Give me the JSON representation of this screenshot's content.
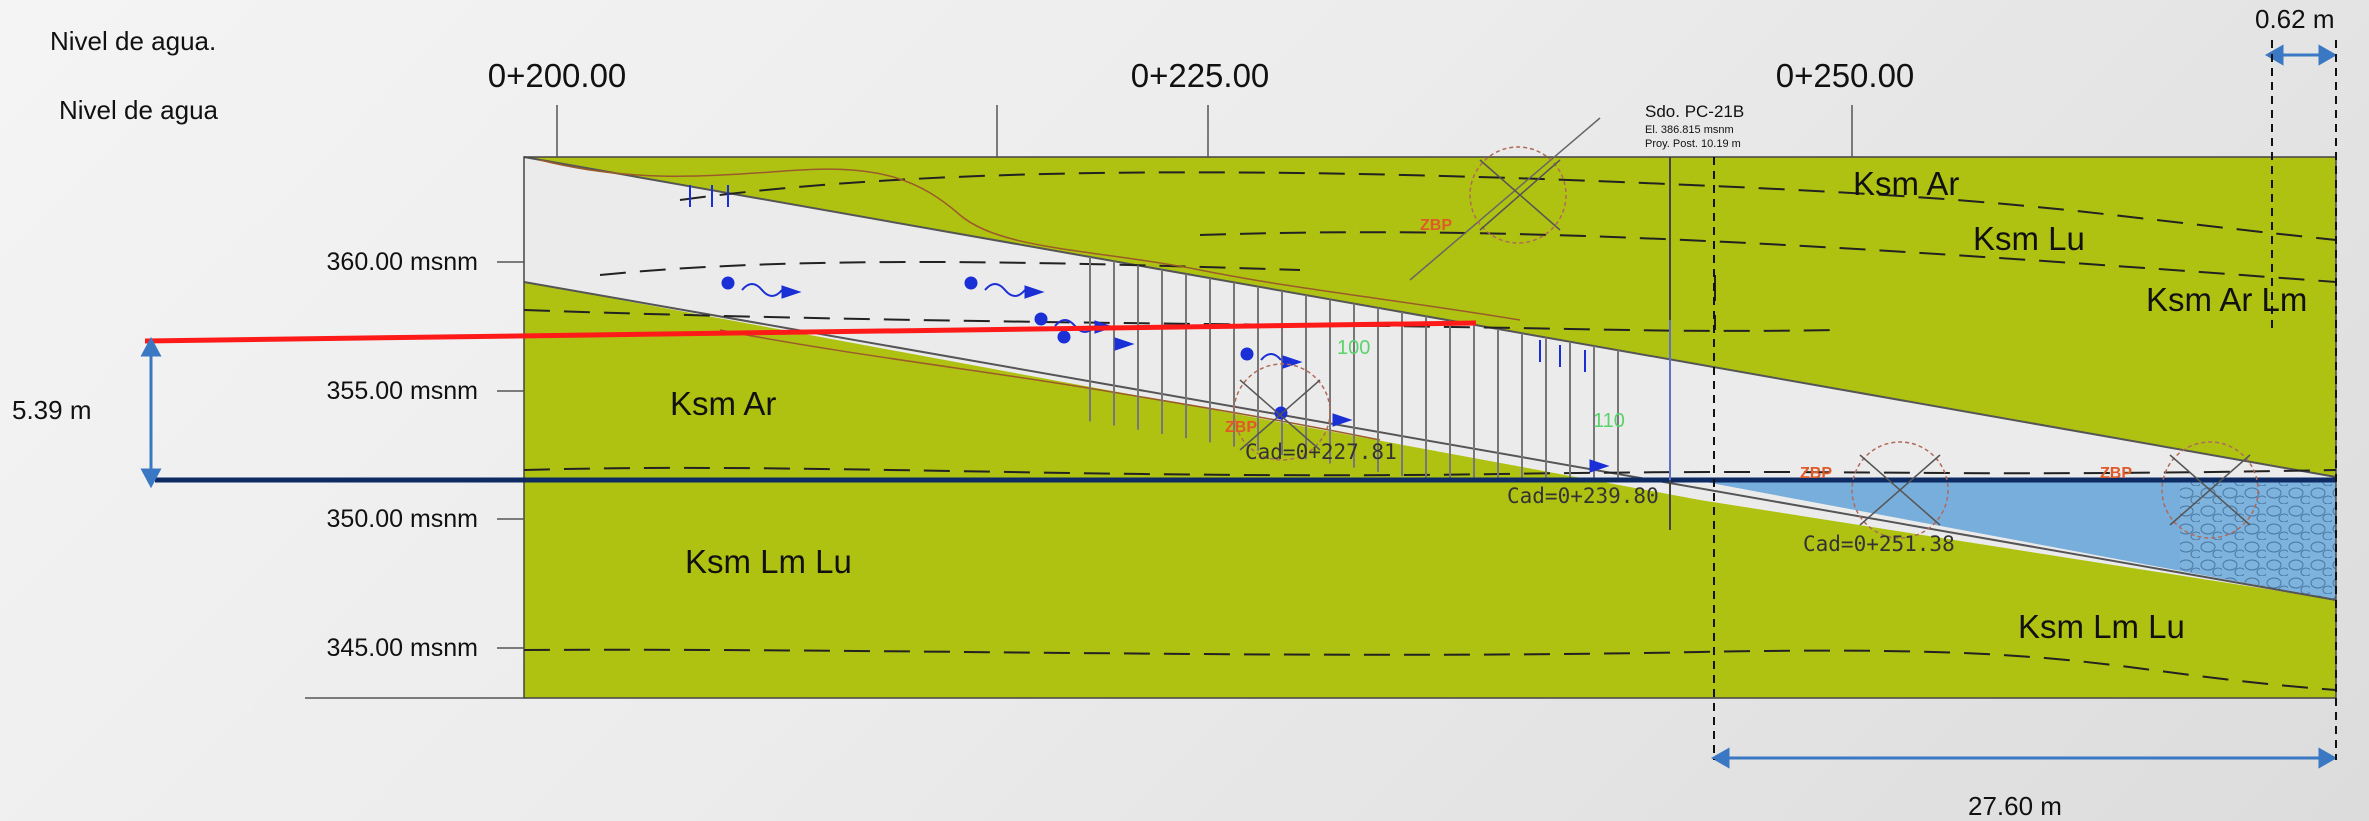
{
  "legend": {
    "item1": "Nivel de agua.",
    "item2": "Nivel de agua"
  },
  "stations": [
    "0+200.00",
    "0+225.00",
    "0+250.00"
  ],
  "elevations": [
    "360.00 msnm",
    "355.00 msnm",
    "350.00 msnm",
    "345.00 msnm"
  ],
  "strata": {
    "ksm_ar_left": "Ksm Ar",
    "ksm_lmlu_left": "Ksm Lm Lu",
    "ksm_ar_top": "Ksm Ar",
    "ksm_lu": "Ksm Lu",
    "ksm_arlm": "Ksm Ar Lm",
    "ksm_lmlu_right": "Ksm Lm Lu"
  },
  "borehole": {
    "name": "Sdo. PC-21B",
    "elevation": "El. 386.815 msnm",
    "depth": "Proy. Post. 10.19 m"
  },
  "cad_labels": [
    "Cad=0+227.81",
    "Cad=0+239.80",
    "Cad=0+251.38"
  ],
  "zbp_label": "ZBP",
  "green_numbers": [
    "100",
    "110"
  ],
  "dimensions": {
    "height": "5.39 m",
    "top_width": "0.62 m",
    "bottom_width": "27.60 m"
  },
  "colors": {
    "stratum": "#afc212",
    "water": "#78aedb",
    "high_water_line": "#ff1a1a",
    "water_line": "#0d2a63",
    "dimension": "#3a78c4",
    "zbp": "#e05a28"
  }
}
